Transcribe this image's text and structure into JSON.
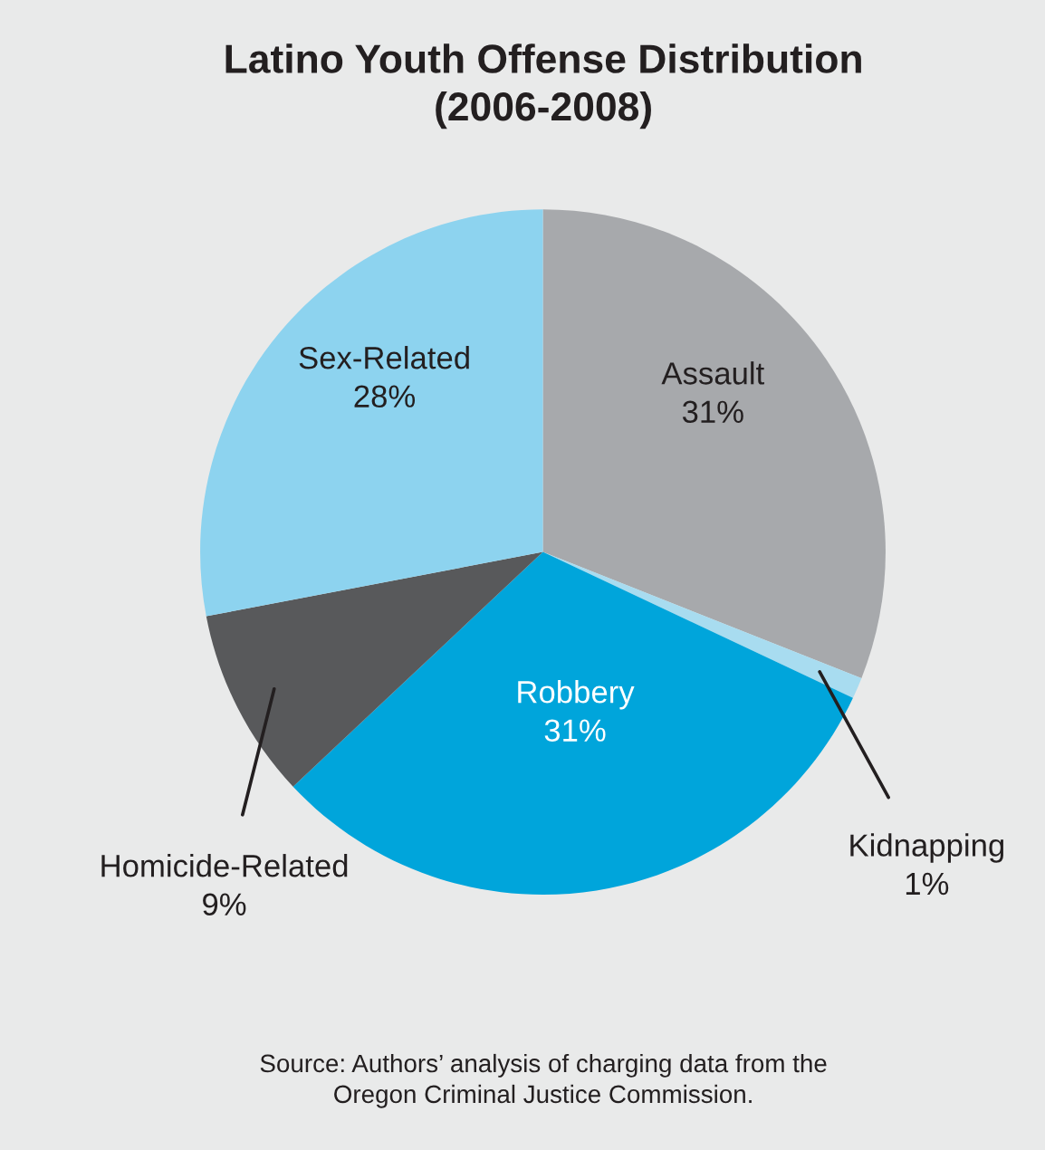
{
  "chart_data": {
    "type": "pie",
    "title": "Latino Youth Offense Distribution\n(2006-2008)",
    "categories": [
      "Assault",
      "Kidnapping",
      "Robbery",
      "Homicide-Related",
      "Sex-Related"
    ],
    "values": [
      31,
      1,
      31,
      9,
      28
    ],
    "value_labels": [
      "31%",
      "1%",
      "31%",
      "9%",
      "28%"
    ],
    "colors": [
      "#a7a9ac",
      "#a8dcf0",
      "#00a5db",
      "#58595b",
      "#8dd3ef"
    ],
    "annotations": [
      "Source: Authors’ analysis of charging data from the\nOregon Criminal Justice Commission."
    ]
  }
}
